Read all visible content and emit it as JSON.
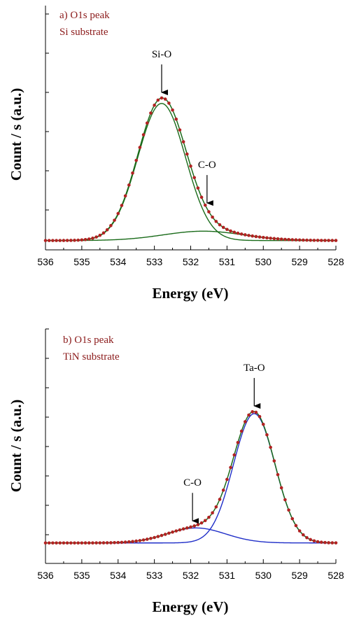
{
  "chart_data": [
    {
      "type": "line",
      "panel_label": "a) O1s peak",
      "panel_sublabel": "Si substrate",
      "xlabel": "Energy (eV)",
      "ylabel": "Count / s (a.u.)",
      "xlim": [
        536,
        528
      ],
      "x_reversed": true,
      "xticks": [
        "536",
        "535",
        "534",
        "533",
        "532",
        "531",
        "530",
        "529",
        "528"
      ],
      "y_tick_labels": "none",
      "annotations": [
        {
          "text": "Si-O",
          "x": 532.8
        },
        {
          "text": "C-O",
          "x": 531.55
        }
      ],
      "peaks": [
        {
          "name": "Si-O",
          "center": 532.8,
          "height": 0.88,
          "width": 1.55,
          "color": "#1a6b1a"
        },
        {
          "name": "C-O",
          "center": 531.65,
          "height": 0.06,
          "width": 2.6,
          "color": "#1a6b1a"
        }
      ],
      "baseline": 0.015,
      "envelope_color": "#1a6b1a",
      "data_marker_color": "#b22222",
      "colors": {
        "fit": "#1a6b1a",
        "data": "#b22222",
        "text": "#8B1A1A"
      }
    },
    {
      "type": "line",
      "panel_label": "b) O1s peak",
      "panel_sublabel": "TiN substrate",
      "xlabel": "Energy (eV)",
      "ylabel": "Count / s (a.u.)",
      "xlim": [
        536,
        528
      ],
      "x_reversed": true,
      "xticks": [
        "536",
        "535",
        "534",
        "533",
        "532",
        "531",
        "530",
        "529",
        "528"
      ],
      "y_tick_labels": "none",
      "annotations": [
        {
          "text": "Ta-O",
          "x": 530.25
        },
        {
          "text": "C-O",
          "x": 531.95
        }
      ],
      "peaks": [
        {
          "name": "Ta-O",
          "center": 530.25,
          "height": 0.82,
          "width": 1.35,
          "color": "#1f2ec8"
        },
        {
          "name": "C-O",
          "center": 531.85,
          "height": 0.095,
          "width": 1.9,
          "color": "#1f2ec8"
        }
      ],
      "baseline": 0.01,
      "envelope_color": "#1a6b1a",
      "data_marker_color": "#b22222",
      "colors": {
        "fit": "#1a6b1a",
        "component": "#1f2ec8",
        "data": "#b22222",
        "text": "#8B1A1A"
      }
    }
  ]
}
